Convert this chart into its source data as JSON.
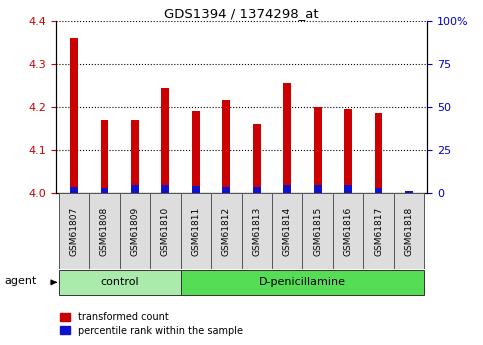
{
  "title": "GDS1394 / 1374298_at",
  "samples": [
    "GSM61807",
    "GSM61808",
    "GSM61809",
    "GSM61810",
    "GSM61811",
    "GSM61812",
    "GSM61813",
    "GSM61814",
    "GSM61815",
    "GSM61816",
    "GSM61817",
    "GSM61818"
  ],
  "transformed_counts": [
    4.36,
    4.17,
    4.17,
    4.245,
    4.19,
    4.215,
    4.16,
    4.255,
    4.2,
    4.195,
    4.185,
    4.005
  ],
  "percentile_ranks": [
    3.5,
    3.0,
    5.0,
    4.5,
    4.0,
    3.5,
    3.5,
    4.5,
    4.5,
    4.5,
    3.0,
    1.5
  ],
  "ylim_left": [
    4.0,
    4.4
  ],
  "ylim_right": [
    0,
    100
  ],
  "yticks_left": [
    4.0,
    4.1,
    4.2,
    4.3,
    4.4
  ],
  "yticks_right": [
    0,
    25,
    50,
    75,
    100
  ],
  "bar_color_red": "#cc0000",
  "bar_color_blue": "#1111cc",
  "groups": [
    {
      "label": "control",
      "start": 0,
      "end": 4,
      "color": "#aaeaaa"
    },
    {
      "label": "D-penicillamine",
      "start": 4,
      "end": 12,
      "color": "#55dd55"
    }
  ],
  "legend_labels": [
    "transformed count",
    "percentile rank within the sample"
  ],
  "agent_label": "agent",
  "tick_label_color_left": "#cc0000",
  "tick_label_color_right": "#0000cc",
  "sample_box_color": "#dddddd",
  "bar_width": 0.25
}
